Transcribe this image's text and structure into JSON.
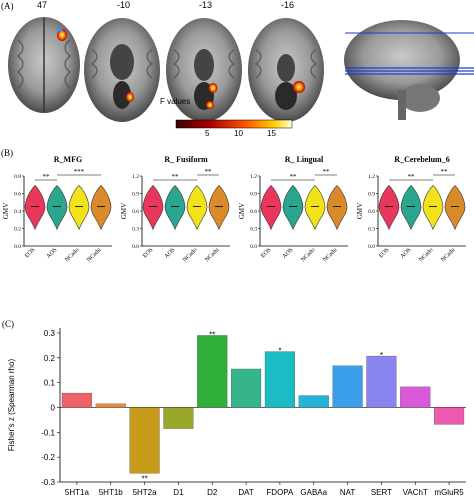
{
  "panels": {
    "A": {
      "label": "(A)",
      "slices": [
        "47",
        "-10",
        "-13",
        "-16"
      ],
      "colorbar": {
        "title": "F values",
        "ticks": [
          "5",
          "10",
          "15"
        ],
        "colors": [
          "#3a0000",
          "#b00000",
          "#ff5500",
          "#ffd000",
          "#ffffe0"
        ]
      }
    },
    "B": {
      "label": "(B)",
      "plots": [
        {
          "title": "R_MFG",
          "ylabel": "GMV",
          "yticks": [
            "0.8",
            "0.6",
            "0.4",
            "0.2",
            "0.0"
          ],
          "groups": [
            "EOS",
            "AOS",
            "NCado",
            "NCadu"
          ],
          "sig": [
            {
              "a": 0,
              "b": 1,
              "stars": "**"
            },
            {
              "a": 1,
              "b": 3,
              "stars": "***"
            }
          ]
        },
        {
          "title": "R_ Fusiform",
          "ylabel": "GMV",
          "yticks": [
            "1.2",
            "0.9",
            "0.6",
            "0.3",
            "0.0"
          ],
          "groups": [
            "EOS",
            "AOS",
            "NCado",
            "NCadu"
          ],
          "sig": [
            {
              "a": 0,
              "b": 2,
              "stars": "**"
            },
            {
              "a": 2,
              "b": 3,
              "stars": "**"
            }
          ]
        },
        {
          "title": "R_ Lingual",
          "ylabel": "GMV",
          "yticks": [
            "1.2",
            "0.9",
            "0.6",
            "0.3",
            "0.0"
          ],
          "groups": [
            "EOS",
            "AOS",
            "NCado",
            "NCadu"
          ],
          "sig": [
            {
              "a": 0,
              "b": 2,
              "stars": "**"
            },
            {
              "a": 2,
              "b": 3,
              "stars": "**"
            }
          ]
        },
        {
          "title": "R_Cerebelum_6",
          "ylabel": "GMV",
          "yticks": [
            "1.2",
            "0.9",
            "0.6",
            "0.3",
            "0.0"
          ],
          "groups": [
            "EOS",
            "AOS",
            "NCado",
            "NCadu"
          ],
          "sig": [
            {
              "a": 0,
              "b": 2,
              "stars": "**"
            },
            {
              "a": 2,
              "b": 3,
              "stars": "**"
            }
          ]
        }
      ],
      "violin_colors": [
        "#e8375a",
        "#2aa58e",
        "#f2e21b",
        "#d98a2b"
      ]
    },
    "C": {
      "label": "(C)"
    }
  },
  "chart_data": {
    "type": "bar",
    "ylabel": "Fisher's z (Spearman rho)",
    "ylim": [
      -0.3,
      0.32
    ],
    "yticks": [
      "0.3",
      "0.2",
      "0.1",
      "0",
      "-0.1",
      "-0.2",
      "-0.3"
    ],
    "categories": [
      "5HT1a",
      "5HT1b",
      "5HT2a",
      "D1",
      "D2",
      "DAT",
      "FDOPA",
      "GABAa",
      "NAT",
      "SERT",
      "VAChT",
      "mGluR5"
    ],
    "values": [
      0.058,
      0.015,
      -0.265,
      -0.085,
      0.29,
      0.155,
      0.225,
      0.048,
      0.168,
      0.207,
      0.083,
      -0.068
    ],
    "colors": [
      "#f0626a",
      "#e78a3b",
      "#c79a1a",
      "#9aa82a",
      "#2fae3a",
      "#37b58a",
      "#1bbcc4",
      "#27b3d8",
      "#3a9ee8",
      "#8a84f0",
      "#d85ad8",
      "#ef5ab0"
    ],
    "annotations": [
      "",
      "",
      "**",
      "",
      "**",
      "",
      "*",
      "",
      "",
      "*",
      "",
      ""
    ]
  }
}
